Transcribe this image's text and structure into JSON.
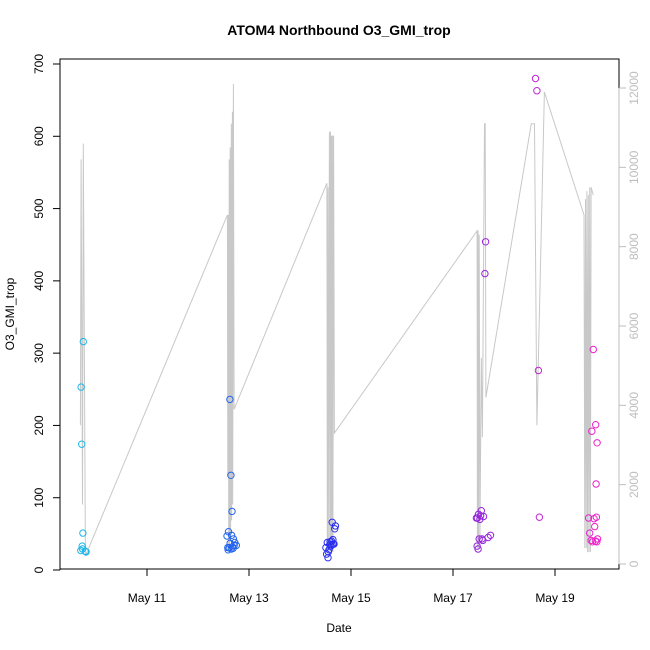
{
  "chart_data": {
    "type": "scatter",
    "title": "ATOM4 Northbound O3_GMI_trop",
    "xlabel": "Date",
    "ylabel": "O3_GMI_trop",
    "x_ticks": [
      "May 11",
      "May 13",
      "May 15",
      "May 17",
      "May 19"
    ],
    "y_ticks": [
      "0",
      "100",
      "200",
      "300",
      "400",
      "500",
      "600",
      "700"
    ],
    "y2_ticks": [
      "0",
      "2000",
      "4000",
      "6000",
      "8000",
      "10000",
      "12000"
    ],
    "ylim": [
      0,
      700
    ],
    "y2lim": [
      0,
      12000
    ],
    "xlim": [
      "May 9 12:00",
      "May 20 06:00"
    ],
    "grid": false,
    "colors": {
      "points_start": "#1fb8e8",
      "points_mid": "#2a2aee",
      "points_end": "#ee22cc",
      "altitude_line": "#c8c8c8",
      "right_axis": "#bdbdbd"
    },
    "series": [
      {
        "axis": "left",
        "points": [
          [
            "May 9 16:50",
            27
          ],
          [
            "May 9 17:00",
            253
          ],
          [
            "May 9 17:15",
            174
          ],
          [
            "May 9 17:30",
            33
          ],
          [
            "May 9 17:40",
            29
          ],
          [
            "May 9 17:50",
            51
          ],
          [
            "May 9 18:00",
            316
          ],
          [
            "May 9 19:00",
            26
          ],
          [
            "May 9 19:20",
            25
          ],
          [
            "May 12 13:40",
            47
          ],
          [
            "May 12 14:00",
            31
          ],
          [
            "May 12 14:10",
            28
          ],
          [
            "May 12 14:20",
            53
          ],
          [
            "May 12 14:40",
            31
          ],
          [
            "May 12 15:00",
            236
          ],
          [
            "May 12 15:10",
            37
          ],
          [
            "May 12 15:30",
            131
          ],
          [
            "May 12 15:40",
            29
          ],
          [
            "May 12 15:50",
            48
          ],
          [
            "May 12 16:00",
            81
          ],
          [
            "May 12 16:10",
            32
          ],
          [
            "May 12 16:30",
            30
          ],
          [
            "May 12 16:40",
            43
          ],
          [
            "May 12 17:00",
            34
          ],
          [
            "May 12 17:20",
            38
          ],
          [
            "May 12 18:00",
            34
          ],
          [
            "May 14 12:10",
            31
          ],
          [
            "May 14 12:30",
            22
          ],
          [
            "May 14 12:50",
            38
          ],
          [
            "May 14 13:10",
            17
          ],
          [
            "May 14 13:20",
            25
          ],
          [
            "May 14 13:40",
            28
          ],
          [
            "May 14 14:00",
            35
          ],
          [
            "May 14 14:10",
            39
          ],
          [
            "May 14 14:30",
            33
          ],
          [
            "May 14 14:50",
            40
          ],
          [
            "May 14 15:00",
            35
          ],
          [
            "May 14 15:10",
            66
          ],
          [
            "May 14 15:30",
            42
          ],
          [
            "May 14 15:40",
            36
          ],
          [
            "May 14 16:00",
            36
          ],
          [
            "May 14 16:20",
            57
          ],
          [
            "May 14 16:40",
            61
          ],
          [
            "May 17 11:00",
            72
          ],
          [
            "May 17 11:20",
            33
          ],
          [
            "May 17 11:30",
            72
          ],
          [
            "May 17 11:50",
            29
          ],
          [
            "May 17 12:00",
            77
          ],
          [
            "May 17 12:20",
            43
          ],
          [
            "May 17 12:40",
            70
          ],
          [
            "May 17 13:00",
            75
          ],
          [
            "May 17 13:20",
            82
          ],
          [
            "May 17 13:40",
            43
          ],
          [
            "May 17 14:00",
            41
          ],
          [
            "May 17 14:20",
            74
          ],
          [
            "May 17 15:00",
            410
          ],
          [
            "May 17 15:20",
            454
          ],
          [
            "May 17 16:30",
            45
          ],
          [
            "May 17 17:40",
            48
          ],
          [
            "May 18 14:50",
            680
          ],
          [
            "May 18 15:30",
            663
          ],
          [
            "May 18 16:10",
            276
          ],
          [
            "May 18 16:40",
            73
          ],
          [
            "May 19 15:50",
            72
          ],
          [
            "May 19 16:20",
            51
          ],
          [
            "May 19 17:00",
            41
          ],
          [
            "May 19 17:20",
            192
          ],
          [
            "May 19 17:40",
            39
          ],
          [
            "May 19 18:00",
            305
          ],
          [
            "May 19 18:20",
            71
          ],
          [
            "May 19 18:40",
            60
          ],
          [
            "May 19 19:00",
            40
          ],
          [
            "May 19 19:10",
            201
          ],
          [
            "May 19 19:20",
            119
          ],
          [
            "May 19 19:30",
            73
          ],
          [
            "May 19 19:40",
            39
          ],
          [
            "May 19 19:50",
            176
          ],
          [
            "May 19 20:00",
            43
          ]
        ]
      },
      {
        "axis": "right",
        "style": "line",
        "points": [
          [
            "May 9 16:40",
            3500
          ],
          [
            "May 9 17:00",
            10200
          ],
          [
            "May 9 17:40",
            1500
          ],
          [
            "May 9 18:00",
            10600
          ],
          [
            "May 9 19:00",
            200
          ],
          [
            "May 12 13:50",
            8800
          ],
          [
            "May 12 14:00",
            2200
          ],
          [
            "May 12 14:10",
            8800
          ],
          [
            "May 12 14:30",
            300
          ],
          [
            "May 12 14:40",
            10200
          ],
          [
            "May 12 14:50",
            500
          ],
          [
            "May 12 15:10",
            10500
          ],
          [
            "May 12 15:20",
            600
          ],
          [
            "May 12 15:40",
            11100
          ],
          [
            "May 12 15:50",
            1100
          ],
          [
            "May 12 16:10",
            11400
          ],
          [
            "May 12 16:20",
            1500
          ],
          [
            "May 12 16:40",
            12100
          ],
          [
            "May 12 17:00",
            3900
          ],
          [
            "May 14 12:40",
            9600
          ],
          [
            "May 14 12:50",
            500
          ],
          [
            "May 14 13:10",
            9500
          ],
          [
            "May 14 13:20",
            500
          ],
          [
            "May 14 13:50",
            10900
          ],
          [
            "May 14 14:00",
            300
          ],
          [
            "May 14 14:20",
            10900
          ],
          [
            "May 14 14:30",
            400
          ],
          [
            "May 14 14:50",
            10800
          ],
          [
            "May 14 15:00",
            400
          ],
          [
            "May 14 15:20",
            10800
          ],
          [
            "May 14 15:30",
            300
          ],
          [
            "May 14 15:50",
            10800
          ],
          [
            "May 14 16:10",
            3300
          ],
          [
            "May 17 11:20",
            8400
          ],
          [
            "May 17 11:30",
            400
          ],
          [
            "May 17 11:50",
            8400
          ],
          [
            "May 17 12:00",
            400
          ],
          [
            "May 17 12:20",
            8300
          ],
          [
            "May 17 12:40",
            500
          ],
          [
            "May 17 13:20",
            5200
          ],
          [
            "May 17 13:50",
            3200
          ],
          [
            "May 17 14:50",
            11100
          ],
          [
            "May 17 15:10",
            11100
          ],
          [
            "May 17 15:30",
            4200
          ],
          [
            "May 18 12:50",
            11100
          ],
          [
            "May 18 14:20",
            11100
          ],
          [
            "May 18 15:30",
            3500
          ],
          [
            "May 18 19:00",
            11900
          ],
          [
            "May 19 13:40",
            8800
          ],
          [
            "May 19 14:00",
            400
          ],
          [
            "May 19 14:20",
            9200
          ],
          [
            "May 19 14:40",
            400
          ],
          [
            "May 19 15:00",
            9400
          ],
          [
            "May 19 15:20",
            300
          ],
          [
            "May 19 15:40",
            9300
          ],
          [
            "May 19 16:00",
            300
          ],
          [
            "May 19 16:20",
            9500
          ],
          [
            "May 19 16:40",
            300
          ],
          [
            "May 19 17:00",
            9500
          ],
          [
            "May 19 18:00",
            9300
          ]
        ]
      }
    ]
  }
}
